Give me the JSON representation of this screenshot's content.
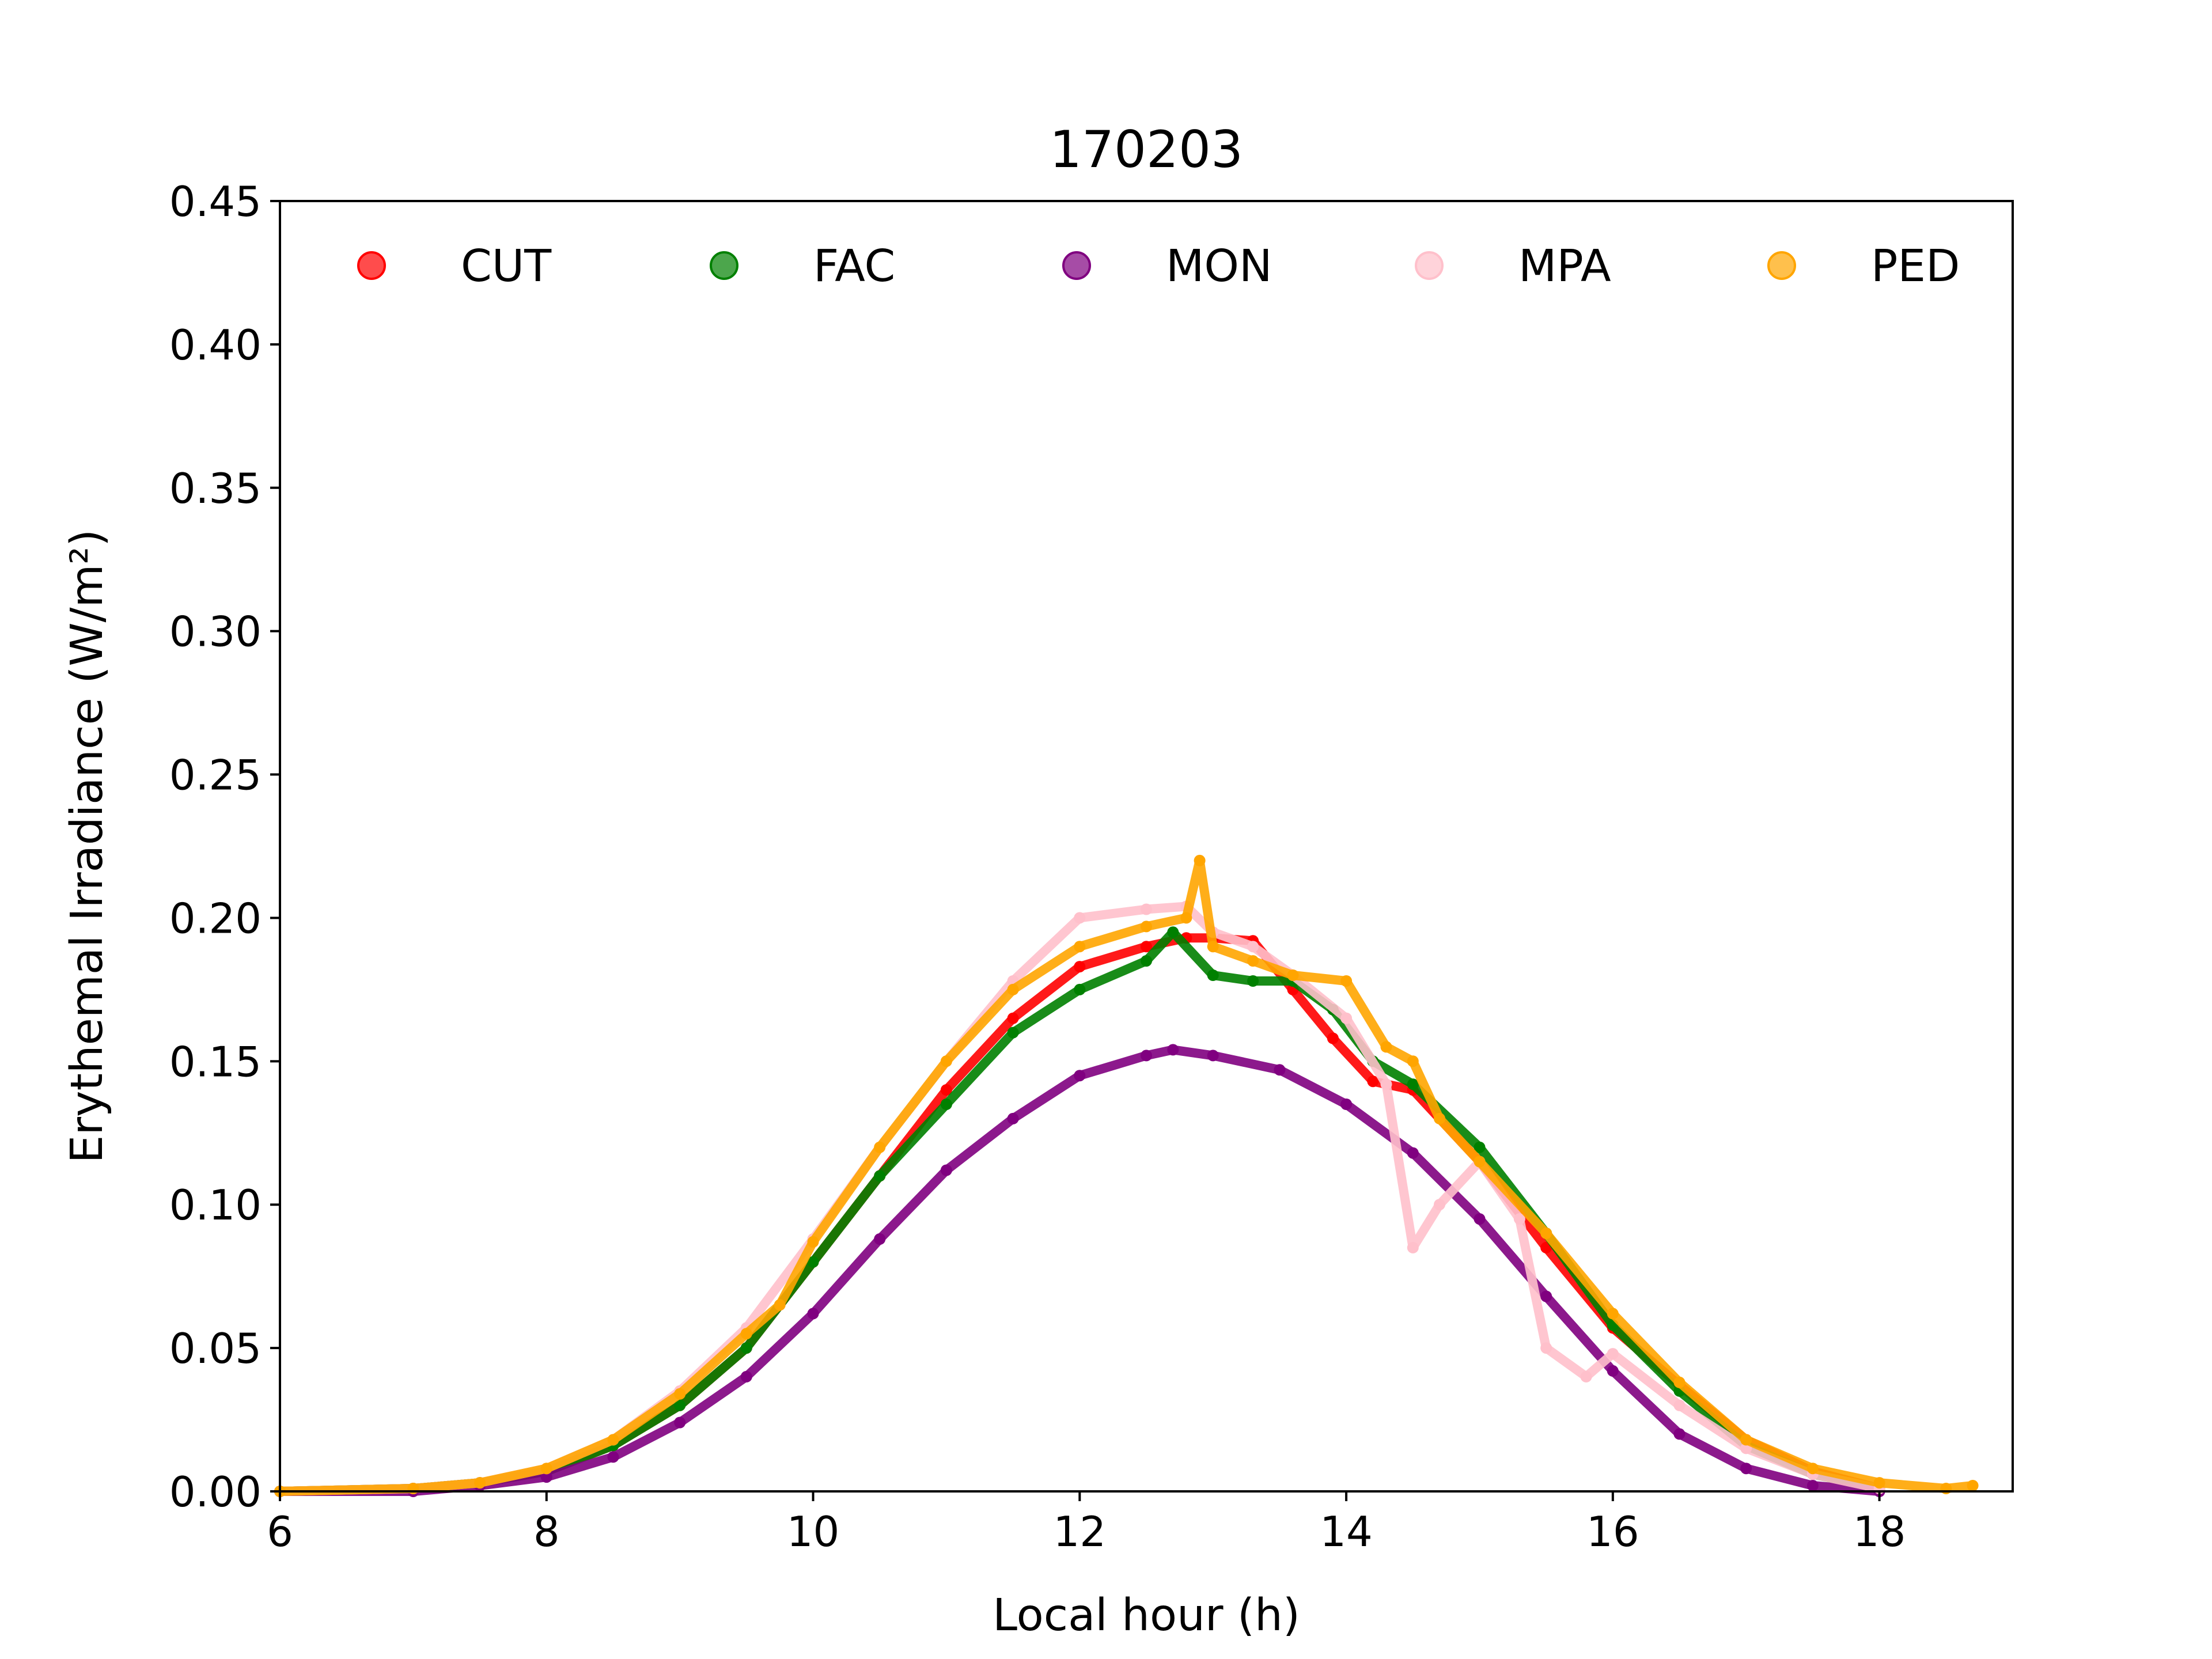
{
  "chart_data": {
    "type": "scatter",
    "title": "170203",
    "xlabel": "Local hour (h)",
    "ylabel": "Erythemal Irradiance (W/m²)",
    "xlim": [
      6,
      19
    ],
    "ylim": [
      0,
      0.45
    ],
    "x_ticks": [
      6,
      8,
      10,
      12,
      14,
      16,
      18
    ],
    "x_tick_labels": [
      "6",
      "8",
      "10",
      "12",
      "14",
      "16",
      "18"
    ],
    "y_ticks": [
      0,
      0.05,
      0.1,
      0.15,
      0.2,
      0.25,
      0.3,
      0.35,
      0.4,
      0.45
    ],
    "y_tick_labels": [
      "0.00",
      "0.05",
      "0.10",
      "0.15",
      "0.20",
      "0.25",
      "0.30",
      "0.35",
      "0.40",
      "0.45"
    ],
    "grid": false,
    "legend_placement": "top",
    "series": [
      {
        "name": "CUT",
        "color": "#ff0000",
        "x": [
          6.0,
          7.0,
          7.5,
          8.0,
          8.5,
          9.0,
          9.5,
          10.0,
          10.5,
          11.0,
          11.5,
          12.0,
          12.5,
          12.8,
          13.0,
          13.3,
          13.6,
          13.9,
          14.2,
          14.5,
          15.0,
          15.5,
          16.0,
          16.5,
          17.0,
          17.5,
          18.0
        ],
        "y": [
          0.0,
          0.001,
          0.003,
          0.007,
          0.016,
          0.03,
          0.05,
          0.08,
          0.11,
          0.14,
          0.165,
          0.183,
          0.19,
          0.193,
          0.193,
          0.192,
          0.175,
          0.158,
          0.143,
          0.14,
          0.115,
          0.085,
          0.057,
          0.037,
          0.018,
          0.007,
          0.001
        ]
      },
      {
        "name": "FAC",
        "color": "#008000",
        "x": [
          6.0,
          7.0,
          7.5,
          8.0,
          8.5,
          9.0,
          9.5,
          10.0,
          10.5,
          11.0,
          11.5,
          12.0,
          12.5,
          12.7,
          13.0,
          13.3,
          13.6,
          13.9,
          14.2,
          14.5,
          15.0,
          15.5,
          16.0,
          16.5,
          17.0,
          17.5,
          18.0
        ],
        "y": [
          0.0,
          0.001,
          0.003,
          0.007,
          0.016,
          0.03,
          0.05,
          0.08,
          0.11,
          0.135,
          0.16,
          0.175,
          0.185,
          0.195,
          0.18,
          0.178,
          0.178,
          0.168,
          0.15,
          0.142,
          0.12,
          0.09,
          0.058,
          0.035,
          0.016,
          0.006,
          0.001
        ]
      },
      {
        "name": "MON",
        "color": "#800080",
        "x": [
          6.0,
          7.0,
          7.5,
          8.0,
          8.5,
          9.0,
          9.5,
          10.0,
          10.5,
          11.0,
          11.5,
          12.0,
          12.5,
          12.7,
          13.0,
          13.5,
          14.0,
          14.5,
          15.0,
          15.5,
          16.0,
          16.5,
          17.0,
          17.5,
          18.0
        ],
        "y": [
          0.0,
          0.0,
          0.002,
          0.005,
          0.012,
          0.024,
          0.04,
          0.062,
          0.088,
          0.112,
          0.13,
          0.145,
          0.152,
          0.154,
          0.152,
          0.147,
          0.135,
          0.118,
          0.095,
          0.068,
          0.042,
          0.02,
          0.008,
          0.002,
          0.0
        ]
      },
      {
        "name": "MPA",
        "color": "#ffc0cb",
        "x": [
          6.0,
          7.0,
          7.5,
          8.0,
          8.5,
          9.0,
          9.5,
          10.0,
          10.5,
          11.0,
          11.5,
          12.0,
          12.5,
          12.8,
          13.0,
          13.3,
          13.6,
          14.0,
          14.3,
          14.5,
          14.7,
          15.0,
          15.3,
          15.5,
          15.8,
          16.0,
          16.5,
          17.0,
          17.5,
          18.0
        ],
        "y": [
          0.0,
          0.001,
          0.003,
          0.008,
          0.018,
          0.035,
          0.057,
          0.088,
          0.12,
          0.15,
          0.178,
          0.2,
          0.203,
          0.204,
          0.195,
          0.19,
          0.18,
          0.165,
          0.142,
          0.085,
          0.1,
          0.115,
          0.095,
          0.05,
          0.04,
          0.048,
          0.03,
          0.015,
          0.006,
          0.001
        ]
      },
      {
        "name": "PED",
        "color": "#ffa500",
        "x": [
          6.0,
          7.0,
          7.5,
          8.0,
          8.5,
          9.0,
          9.5,
          9.75,
          10.0,
          10.5,
          11.0,
          11.5,
          12.0,
          12.5,
          12.8,
          12.9,
          13.0,
          13.3,
          13.6,
          14.0,
          14.3,
          14.5,
          14.7,
          15.0,
          15.5,
          16.0,
          16.5,
          17.0,
          17.5,
          18.0,
          18.5,
          18.7
        ],
        "y": [
          0.0,
          0.001,
          0.003,
          0.008,
          0.018,
          0.034,
          0.055,
          0.065,
          0.087,
          0.12,
          0.15,
          0.175,
          0.19,
          0.197,
          0.2,
          0.22,
          0.19,
          0.185,
          0.18,
          0.178,
          0.155,
          0.15,
          0.13,
          0.115,
          0.09,
          0.062,
          0.038,
          0.018,
          0.008,
          0.003,
          0.001,
          0.002
        ]
      }
    ]
  }
}
